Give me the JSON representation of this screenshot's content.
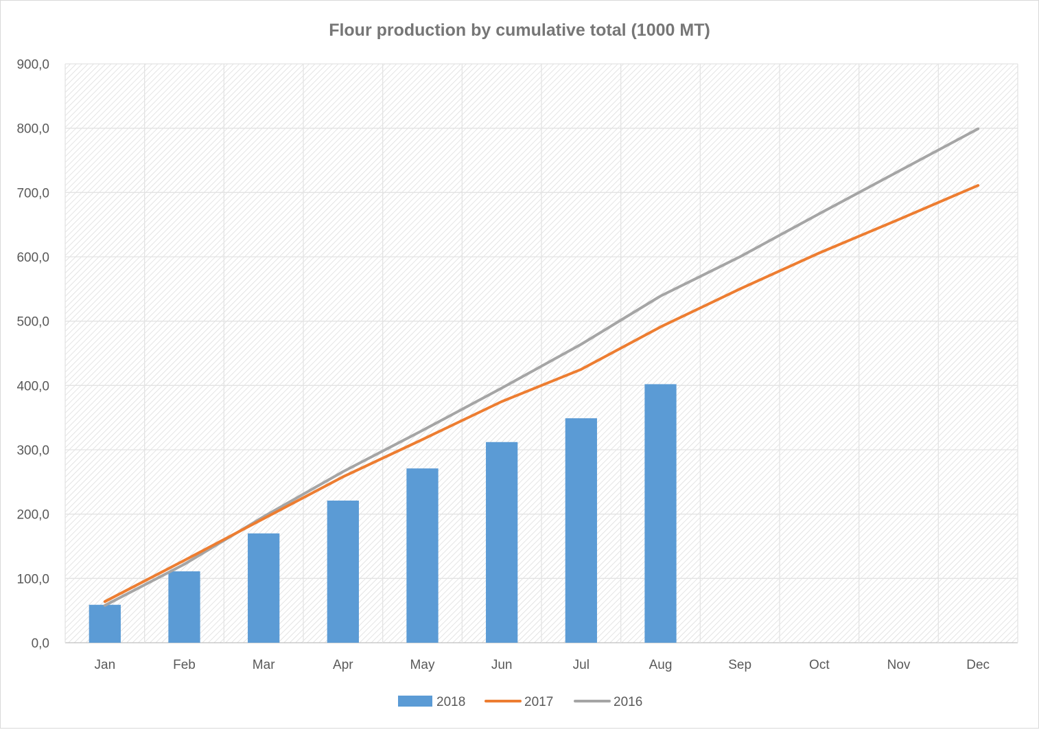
{
  "chart_data": {
    "type": "bar",
    "title": "Flour production by cumulative total (1000 MT)",
    "xlabel": "",
    "ylabel": "",
    "categories": [
      "Jan",
      "Feb",
      "Mar",
      "Apr",
      "May",
      "Jun",
      "Jul",
      "Aug",
      "Sep",
      "Oct",
      "Nov",
      "Dec"
    ],
    "ylim": [
      0,
      900
    ],
    "yticks": [
      "0,0",
      "100,0",
      "200,0",
      "300,0",
      "400,0",
      "500,0",
      "600,0",
      "700,0",
      "800,0",
      "900,0"
    ],
    "grid": true,
    "legend_position": "bottom",
    "series": [
      {
        "name": "2018",
        "kind": "bar",
        "color": "#5B9BD5",
        "values": [
          59,
          111,
          170,
          221,
          271,
          312,
          349,
          402,
          null,
          null,
          null,
          null
        ]
      },
      {
        "name": "2017",
        "kind": "line",
        "color": "#ED7D31",
        "values": [
          64,
          128,
          193,
          258,
          316,
          375,
          425,
          491,
          550,
          606,
          658,
          711
        ]
      },
      {
        "name": "2016",
        "kind": "line",
        "color": "#A5A5A5",
        "values": [
          58,
          122,
          196,
          266,
          330,
          396,
          464,
          539,
          600,
          667,
          733,
          799
        ]
      }
    ]
  }
}
